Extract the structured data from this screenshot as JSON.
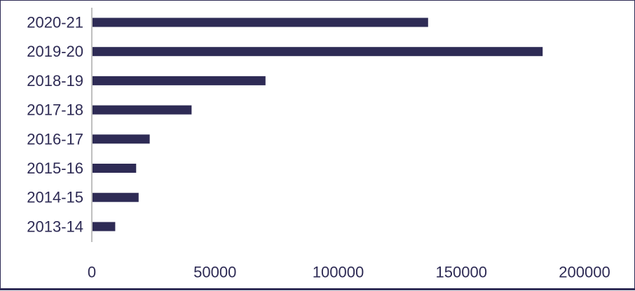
{
  "chart_data": {
    "type": "bar",
    "orientation": "horizontal",
    "title": "",
    "xlabel": "",
    "ylabel": "",
    "categories": [
      "2020-21",
      "2019-20",
      "2018-19",
      "2017-18",
      "2016-17",
      "2015-16",
      "2014-15",
      "2013-14"
    ],
    "values": [
      136500,
      183000,
      70500,
      40500,
      23500,
      18000,
      19000,
      9500
    ],
    "xlim": [
      0,
      200000
    ],
    "x_ticks": [
      0,
      50000,
      100000,
      150000,
      200000
    ],
    "x_tick_labels": [
      "0",
      "50000",
      "100000",
      "150000",
      "200000"
    ],
    "grid": false,
    "legend": "none",
    "bar_color": "#2e2b55",
    "axis_color": "#bfbfbf",
    "text_color": "#2e2b55"
  }
}
